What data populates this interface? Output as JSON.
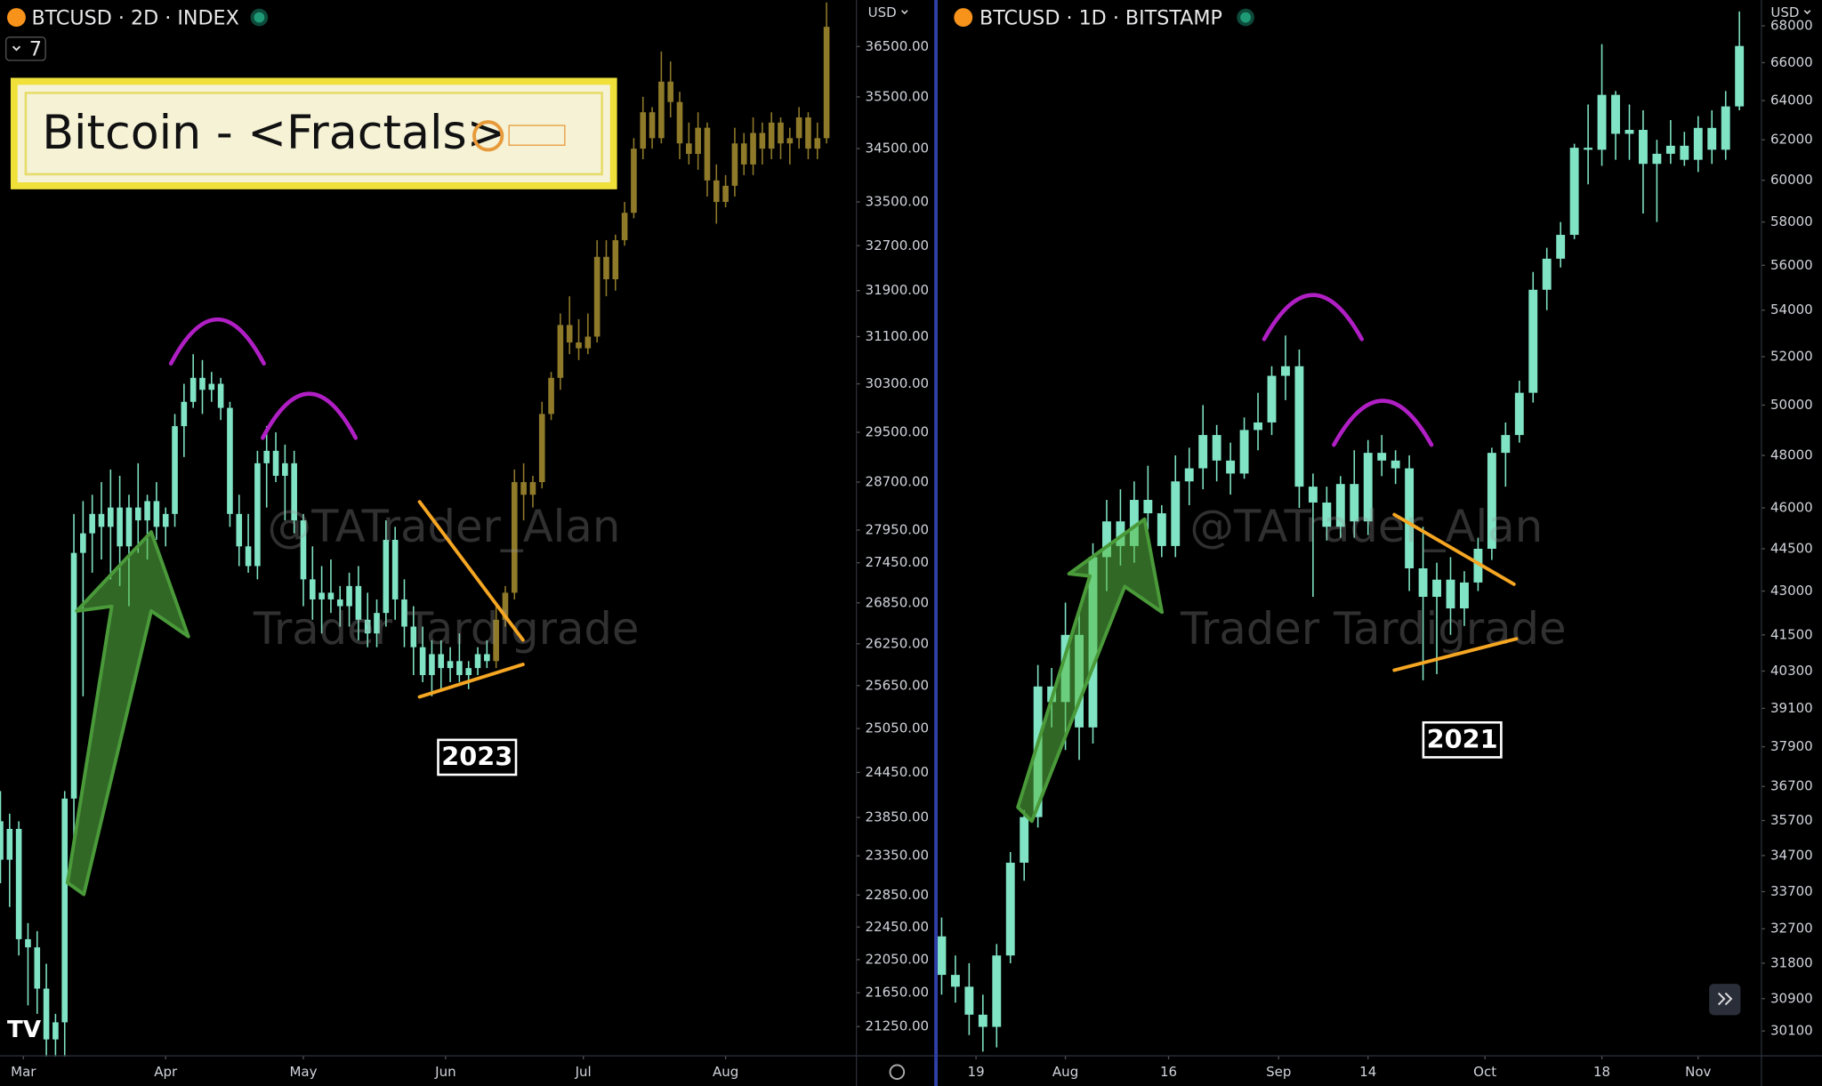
{
  "header": {
    "title_box": "Bitcoin - <Fractals>",
    "indicator_count": 7
  },
  "chart_data": [
    {
      "type": "candlestick",
      "title": "BTCUSD · 2D · INDEX",
      "currency": "USD",
      "annotation": "2023",
      "watermark": [
        "@TATrader_Alan",
        "Trader Tardigrade"
      ],
      "log_scale": true,
      "grid": false,
      "xlim": [
        -5.06,
        181.5
      ],
      "ylim": [
        20910,
        37450
      ],
      "xticks": [
        {
          "value": 0,
          "label": "Mar"
        },
        {
          "value": 31,
          "label": "Apr"
        },
        {
          "value": 61,
          "label": "May"
        },
        {
          "value": 92,
          "label": "Jun"
        },
        {
          "value": 122,
          "label": "Jul"
        },
        {
          "value": 153,
          "label": "Aug"
        }
      ],
      "yticks": [
        {
          "value": 21250,
          "label": "21250.00"
        },
        {
          "value": 21650,
          "label": "21650.00"
        },
        {
          "value": 22050,
          "label": "22050.00"
        },
        {
          "value": 22450,
          "label": "22450.00"
        },
        {
          "value": 22850,
          "label": "22850.00"
        },
        {
          "value": 23350,
          "label": "23350.00"
        },
        {
          "value": 23850,
          "label": "23850.00"
        },
        {
          "value": 24450,
          "label": "24450.00"
        },
        {
          "value": 25050,
          "label": "25050.00"
        },
        {
          "value": 25650,
          "label": "25650.00"
        },
        {
          "value": 26250,
          "label": "26250.00"
        },
        {
          "value": 26850,
          "label": "26850.00"
        },
        {
          "value": 27450,
          "label": "27450.00"
        },
        {
          "value": 27950,
          "label": "27950.00"
        },
        {
          "value": 28700,
          "label": "28700.00"
        },
        {
          "value": 29500,
          "label": "29500.00"
        },
        {
          "value": 30300,
          "label": "30300.00"
        },
        {
          "value": 31100,
          "label": "31100.00"
        },
        {
          "value": 31900,
          "label": "31900.00"
        },
        {
          "value": 32700,
          "label": "32700.00"
        },
        {
          "value": 33500,
          "label": "33500.00"
        },
        {
          "value": 34500,
          "label": "34500.00"
        },
        {
          "value": 35500,
          "label": "35500.00"
        },
        {
          "value": 36500,
          "label": "36500.00"
        }
      ],
      "series": [
        {
          "color": "#7fe3c4",
          "x": [
            -5,
            -3,
            -1,
            1,
            3,
            5,
            7,
            9,
            11,
            13,
            15,
            17,
            19,
            21,
            23,
            25,
            27,
            29,
            31,
            33,
            35,
            37,
            39,
            41,
            43,
            45,
            47,
            49,
            51,
            53,
            55,
            57,
            59,
            61,
            63,
            65,
            67,
            69,
            71,
            73,
            75,
            77,
            79,
            81,
            83,
            85,
            87,
            89,
            91,
            93,
            95,
            97,
            99,
            101
          ],
          "open": [
            23800,
            23300,
            23700,
            22300,
            22200,
            21700,
            21100,
            21300,
            24100,
            27600,
            27900,
            28200,
            28000,
            28300,
            27700,
            28300,
            28100,
            28400,
            28000,
            28200,
            29600,
            30000,
            30400,
            30200,
            30300,
            29900,
            28200,
            27700,
            27400,
            29000,
            29200,
            28800,
            29000,
            28100,
            27200,
            26900,
            27000,
            26900,
            26800,
            27100,
            26600,
            26400,
            26700,
            27800,
            26900,
            26500,
            26200,
            25800,
            26100,
            25900,
            26000,
            25800,
            25900,
            26100
          ],
          "high": [
            24200,
            23900,
            23800,
            22500,
            22400,
            22000,
            21400,
            24200,
            28200,
            28400,
            28500,
            28700,
            28900,
            28800,
            28500,
            29000,
            28500,
            28700,
            28300,
            29800,
            30300,
            30800,
            30700,
            30500,
            30400,
            30000,
            28500,
            28200,
            29200,
            29600,
            29500,
            29300,
            29200,
            28200,
            27700,
            27400,
            27500,
            27100,
            27300,
            27400,
            27000,
            26900,
            28100,
            28000,
            27200,
            26800,
            26500,
            26300,
            26300,
            26200,
            26400,
            26000,
            26200,
            26300
          ],
          "low": [
            23000,
            22700,
            22100,
            21500,
            21400,
            20900,
            20900,
            20900,
            23500,
            25500,
            27300,
            27500,
            27200,
            27100,
            26800,
            27600,
            27500,
            27800,
            27700,
            28000,
            29100,
            29900,
            29800,
            30000,
            29700,
            28000,
            27400,
            27300,
            27200,
            28300,
            28700,
            28100,
            27900,
            26800,
            26600,
            26400,
            26700,
            26500,
            26500,
            26300,
            26200,
            26200,
            26500,
            26600,
            26200,
            25800,
            25700,
            25500,
            25600,
            25700,
            25700,
            25600,
            25800,
            25900
          ],
          "close": [
            23300,
            23700,
            22300,
            22200,
            21700,
            21100,
            21300,
            24100,
            27600,
            27900,
            28200,
            28000,
            28300,
            27700,
            28300,
            28100,
            28400,
            28000,
            28200,
            29600,
            30000,
            30400,
            30200,
            30300,
            29900,
            28200,
            27700,
            27400,
            29000,
            29200,
            28800,
            29000,
            28100,
            27200,
            26900,
            27000,
            26900,
            26800,
            27100,
            26600,
            26400,
            26700,
            27800,
            26900,
            26500,
            26200,
            25800,
            26100,
            25900,
            26000,
            25800,
            25900,
            26100,
            26000
          ]
        },
        {
          "color": "#8f7a2a",
          "x": [
            103,
            105,
            107,
            109,
            111,
            113,
            115,
            117,
            119,
            121,
            123,
            125,
            127,
            129,
            131,
            133,
            135,
            137,
            139,
            141,
            143,
            145,
            147,
            149,
            151,
            153,
            155,
            157,
            159,
            161,
            163,
            165,
            167,
            169,
            171,
            173,
            175
          ],
          "open": [
            26000,
            26600,
            27000,
            28700,
            28500,
            28700,
            29800,
            30400,
            31300,
            31000,
            30900,
            31100,
            32500,
            32100,
            32800,
            33300,
            34500,
            35200,
            34700,
            35800,
            35400,
            34600,
            34400,
            34900,
            33900,
            33500,
            33800,
            34600,
            34200,
            34800,
            34500,
            35000,
            34600,
            34700,
            35100,
            34500,
            34700
          ],
          "high": [
            26800,
            27100,
            28900,
            29000,
            28800,
            30000,
            30500,
            31500,
            31800,
            31400,
            31500,
            32800,
            32800,
            32900,
            33500,
            34700,
            35500,
            35300,
            36400,
            36200,
            35600,
            35000,
            35200,
            35000,
            34200,
            34000,
            34900,
            34800,
            35100,
            35000,
            35200,
            35100,
            34900,
            35300,
            35200,
            35000,
            37400
          ],
          "low": [
            25900,
            26500,
            26900,
            28100,
            28300,
            28600,
            29700,
            30200,
            30800,
            30700,
            30800,
            31000,
            31800,
            31900,
            32700,
            33200,
            34300,
            34500,
            34600,
            35100,
            34300,
            34200,
            34100,
            33600,
            33100,
            33400,
            33600,
            34000,
            34000,
            34200,
            34300,
            34300,
            34200,
            34500,
            34300,
            34300,
            34600
          ],
          "close": [
            26600,
            27000,
            28700,
            28500,
            28700,
            29800,
            30400,
            31300,
            31000,
            30900,
            31100,
            32500,
            32100,
            32800,
            33300,
            34500,
            35200,
            34700,
            35800,
            35400,
            34600,
            34400,
            34900,
            33900,
            33500,
            33800,
            34600,
            34200,
            34800,
            34500,
            35000,
            34600,
            34700,
            35100,
            34500,
            34700,
            36900
          ]
        }
      ]
    },
    {
      "type": "candlestick",
      "title": "BTCUSD · 1D · BITSTAMP",
      "currency": "USD",
      "annotation": "2021",
      "watermark": [
        "@TATrader_Alan",
        "Trader Tardigrade"
      ],
      "log_scale": true,
      "grid": false,
      "xlim": [
        -5.4,
        114.2
      ],
      "ylim": [
        29500,
        69440
      ],
      "xticks": [
        {
          "value": 0,
          "label": "19"
        },
        {
          "value": 13,
          "label": "Aug"
        },
        {
          "value": 28,
          "label": "16"
        },
        {
          "value": 44,
          "label": "Sep"
        },
        {
          "value": 57,
          "label": "14"
        },
        {
          "value": 74,
          "label": "Oct"
        },
        {
          "value": 91,
          "label": "18"
        },
        {
          "value": 105,
          "label": "Nov"
        }
      ],
      "yticks": [
        30100,
        30900,
        31800,
        32700,
        33700,
        34700,
        35700,
        36700,
        37900,
        39100,
        40300,
        41500,
        43000,
        44500,
        46000,
        48000,
        50000,
        52000,
        54000,
        56000,
        58000,
        60000,
        62000,
        64000,
        66000,
        68000
      ],
      "series": [
        {
          "color": "#7fe3c4",
          "x": [
            -5,
            -3,
            -1,
            1,
            3,
            5,
            7,
            9,
            11,
            13,
            15,
            17,
            19,
            21,
            23,
            25,
            27,
            29,
            31,
            33,
            35,
            37,
            39,
            41,
            43,
            45,
            47,
            49,
            51,
            53,
            55,
            57,
            59,
            61,
            63,
            65,
            67,
            69,
            71,
            73,
            75,
            77,
            79,
            81,
            83,
            85,
            87,
            89,
            91,
            93,
            95,
            97,
            99,
            101,
            103,
            105,
            107,
            109,
            111
          ],
          "open": [
            32500,
            31500,
            31200,
            30500,
            30200,
            32000,
            34500,
            35800,
            39800,
            39300,
            41500,
            38500,
            44200,
            45500,
            44600,
            46300,
            45800,
            44600,
            47000,
            47500,
            48800,
            47800,
            47300,
            49000,
            49300,
            51200,
            51600,
            46800,
            46200,
            45300,
            46900,
            45500,
            48100,
            47800,
            47500,
            43800,
            42800,
            43400,
            42400,
            43300,
            44500,
            48100,
            48800,
            50500,
            54900,
            56300,
            57400,
            61600,
            61500,
            64300,
            62300,
            62500,
            60800,
            61300,
            61700,
            61000,
            62600,
            61500,
            63700
          ],
          "high": [
            33000,
            32000,
            31800,
            31000,
            32300,
            34800,
            36000,
            40500,
            40400,
            42600,
            42200,
            44700,
            46300,
            46700,
            47000,
            47600,
            46100,
            48000,
            48300,
            50000,
            49200,
            48500,
            49500,
            50500,
            51600,
            52900,
            52300,
            47300,
            46800,
            47200,
            48200,
            48600,
            48800,
            48200,
            48000,
            45300,
            44000,
            44200,
            43700,
            44900,
            48300,
            49300,
            51000,
            55700,
            56800,
            58000,
            61800,
            63800,
            67000,
            64500,
            63800,
            63500,
            62000,
            63000,
            62400,
            63200,
            63500,
            64500,
            68800
          ],
          "low": [
            31000,
            30800,
            30000,
            29600,
            29700,
            31800,
            34000,
            35500,
            38500,
            37800,
            37500,
            38000,
            43000,
            43900,
            44000,
            45200,
            44200,
            44200,
            46100,
            46700,
            47000,
            46500,
            47100,
            48200,
            48800,
            50200,
            46000,
            42800,
            44800,
            44900,
            44900,
            45000,
            47200,
            46900,
            43000,
            40000,
            40200,
            41500,
            41800,
            43000,
            44100,
            46800,
            48500,
            50100,
            54000,
            55900,
            57200,
            59800,
            60700,
            61000,
            61000,
            58400,
            58000,
            60800,
            60700,
            60400,
            60800,
            61000,
            63500
          ],
          "close": [
            31500,
            31200,
            30500,
            30200,
            32000,
            34500,
            35800,
            39800,
            39300,
            41500,
            38500,
            44200,
            45500,
            44600,
            46300,
            45800,
            44600,
            47000,
            47500,
            48800,
            47800,
            47300,
            49000,
            49300,
            51200,
            51600,
            46800,
            46200,
            45300,
            46900,
            45500,
            48100,
            47800,
            47500,
            43800,
            42800,
            43400,
            42400,
            43300,
            44500,
            48100,
            48800,
            50500,
            54900,
            56300,
            57400,
            61600,
            61500,
            64300,
            62300,
            62500,
            60800,
            61300,
            61700,
            61000,
            62600,
            61500,
            63700,
            66900
          ]
        }
      ]
    }
  ]
}
